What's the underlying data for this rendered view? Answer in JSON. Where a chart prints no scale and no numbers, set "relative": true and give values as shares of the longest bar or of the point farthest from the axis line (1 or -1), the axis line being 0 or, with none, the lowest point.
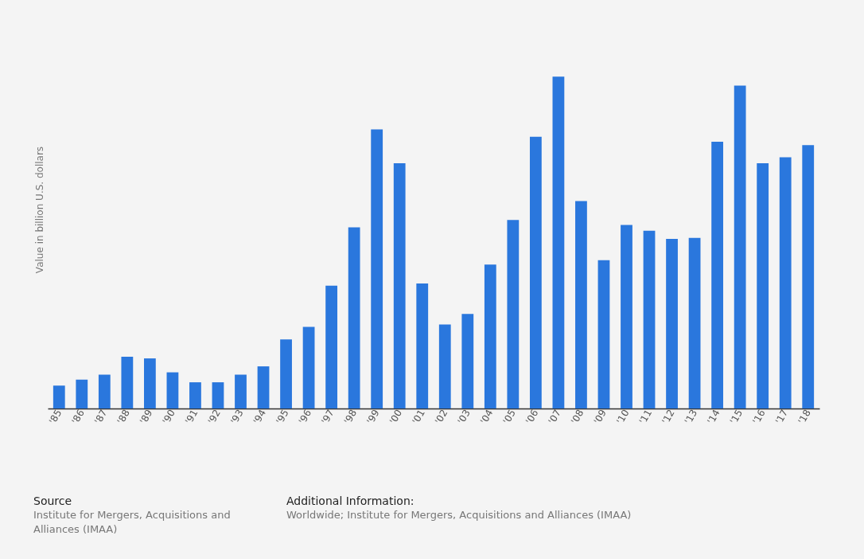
{
  "chart_data": {
    "type": "bar",
    "relative": true,
    "ylabel": "Value in billion U.S. dollars",
    "categories": [
      "'85",
      "'86",
      "'87",
      "'88",
      "'89",
      "'90",
      "'91",
      "'92",
      "'93",
      "'94",
      "'95",
      "'96",
      "'97",
      "'98",
      "'99",
      "'00",
      "'01",
      "'02",
      "'03",
      "'04",
      "'05",
      "'06",
      "'07",
      "'08",
      "'09",
      "'10",
      "'11",
      "'12",
      "'13",
      "'14",
      "'15",
      "'16",
      "'17",
      "'18"
    ],
    "values": [
      0.069,
      0.087,
      0.102,
      0.156,
      0.151,
      0.109,
      0.079,
      0.079,
      0.102,
      0.127,
      0.208,
      0.246,
      0.37,
      0.546,
      0.841,
      0.739,
      0.377,
      0.253,
      0.285,
      0.434,
      0.568,
      0.819,
      1,
      0.625,
      0.447,
      0.553,
      0.536,
      0.511,
      0.514,
      0.804,
      0.973,
      0.739,
      0.757,
      0.794
    ],
    "color": "#2a77dd",
    "annotations": [
      "Source",
      "Institute for Mergers, Acquisitions and Alliances (IMAA)",
      "Additional Information:",
      "Worldwide; Institute for Mergers, Acquisitions and Alliances (IMAA)"
    ]
  }
}
